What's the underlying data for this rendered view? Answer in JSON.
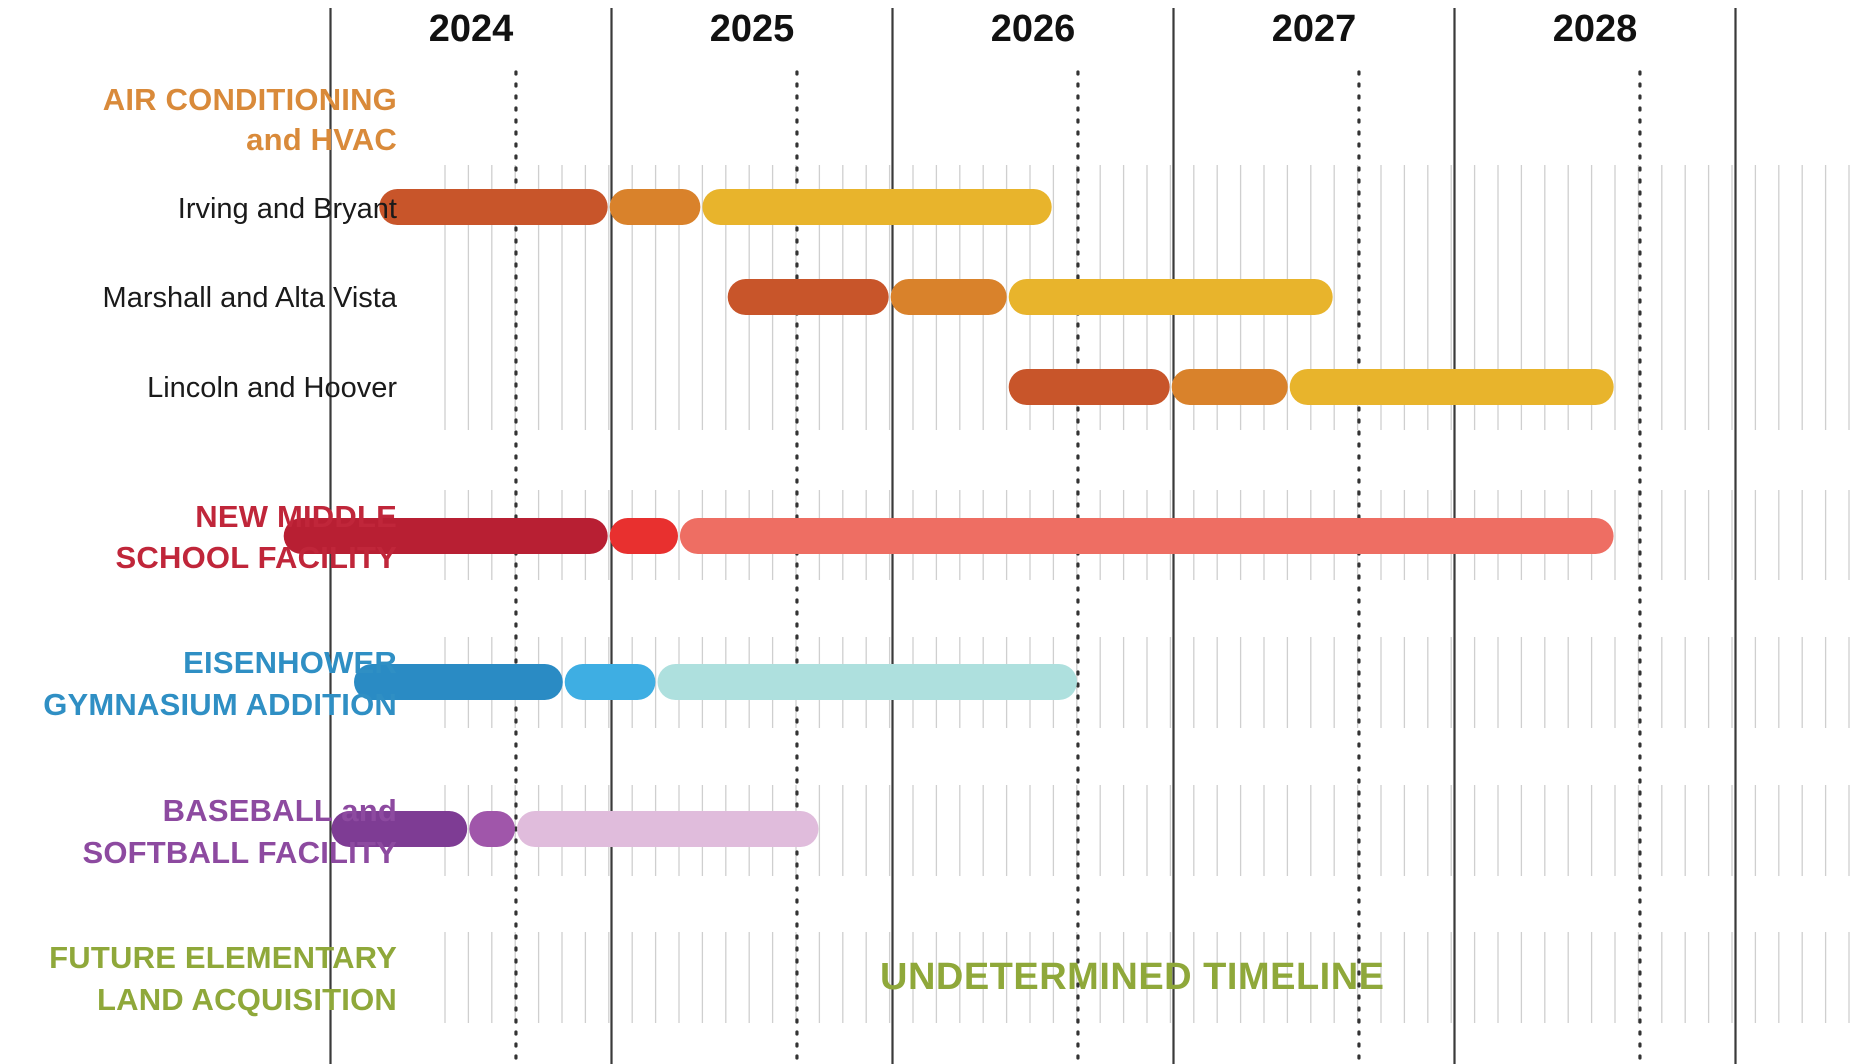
{
  "chart_data": {
    "type": "gantt",
    "x_unit": "year",
    "xlim": [
      2023.33,
      2028.0
    ],
    "years": [
      "2024",
      "2025",
      "2026",
      "2027",
      "2028"
    ],
    "phase_colors": {
      "ac": [
        "#c8552a",
        "#d9822b",
        "#e8b42c"
      ],
      "ms": [
        "#b81f33",
        "#e8302f",
        "#ee6e63"
      ],
      "gym": [
        "#2a8bc4",
        "#3eaee3",
        "#aee0de"
      ],
      "ball": [
        "#7e3c94",
        "#a056aa",
        "#e0bcdc"
      ]
    },
    "groups": [
      {
        "id": "ac",
        "label": [
          "AIR CONDITIONING",
          "and HVAC"
        ],
        "color": "#d98a3a",
        "rows": [
          {
            "label": "Irving and Bryant",
            "segments": [
              [
                2023.67,
                2024.49
              ],
              [
                2024.49,
                2024.82
              ],
              [
                2024.82,
                2026.07
              ]
            ]
          },
          {
            "label": "Marshall and Alta Vista",
            "segments": [
              [
                2024.91,
                2025.49
              ],
              [
                2025.49,
                2025.91
              ],
              [
                2025.91,
                2027.07
              ]
            ]
          },
          {
            "label": "Lincoln and Hoover",
            "segments": [
              [
                2025.91,
                2026.49
              ],
              [
                2026.49,
                2026.91
              ],
              [
                2026.91,
                2028.07
              ]
            ]
          }
        ]
      },
      {
        "id": "ms",
        "label": [
          "NEW MIDDLE",
          "SCHOOL FACILITY"
        ],
        "color": "#c0263a",
        "rows": [
          {
            "label": "",
            "segments": [
              [
                2023.33,
                2024.49
              ],
              [
                2024.49,
                2024.74
              ],
              [
                2024.74,
                2028.07
              ]
            ]
          }
        ]
      },
      {
        "id": "gym",
        "label": [
          "EISENHOWER",
          "GYMNASIUM ADDITION"
        ],
        "color": "#2f8fc4",
        "rows": [
          {
            "label": "",
            "segments": [
              [
                2023.58,
                2024.33
              ],
              [
                2024.33,
                2024.66
              ],
              [
                2024.66,
                2026.16
              ]
            ]
          }
        ]
      },
      {
        "id": "ball",
        "label": [
          "BASEBALL and",
          "SOFTBALL FACILITY"
        ],
        "color": "#8d4aa0",
        "rows": [
          {
            "label": "",
            "segments": [
              [
                2023.5,
                2023.99
              ],
              [
                2023.99,
                2024.16
              ],
              [
                2024.16,
                2025.24
              ]
            ]
          }
        ]
      },
      {
        "id": "land",
        "label": [
          "FUTURE ELEMENTARY",
          "LAND ACQUISITION"
        ],
        "color": "#8fa83a",
        "rows": [
          {
            "label": "",
            "segments": [],
            "note": "UNDETERMINED TIMELINE"
          }
        ]
      }
    ]
  }
}
